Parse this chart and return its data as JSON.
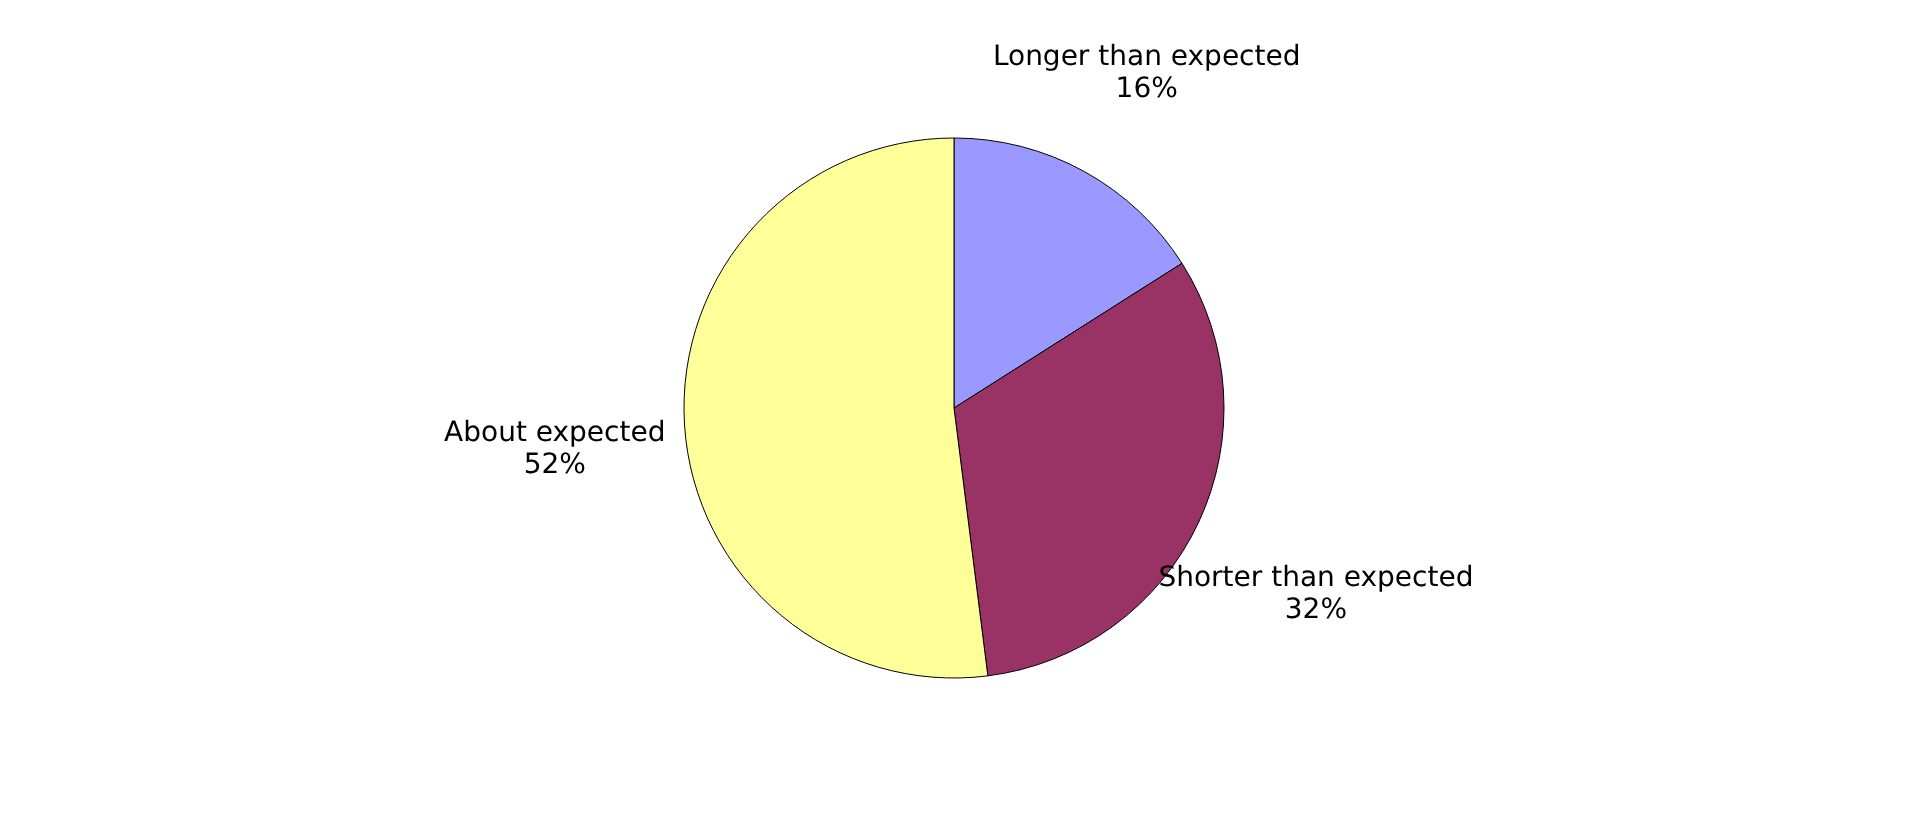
{
  "chart_data": {
    "type": "pie",
    "categories": [
      "Longer than expected",
      "Shorter than expected",
      "About expected"
    ],
    "values": [
      16,
      32,
      52
    ],
    "value_labels": [
      "16%",
      "32%",
      "52%"
    ],
    "colors": [
      "#9999ff",
      "#993366",
      "#ffff99"
    ],
    "legend": false
  }
}
